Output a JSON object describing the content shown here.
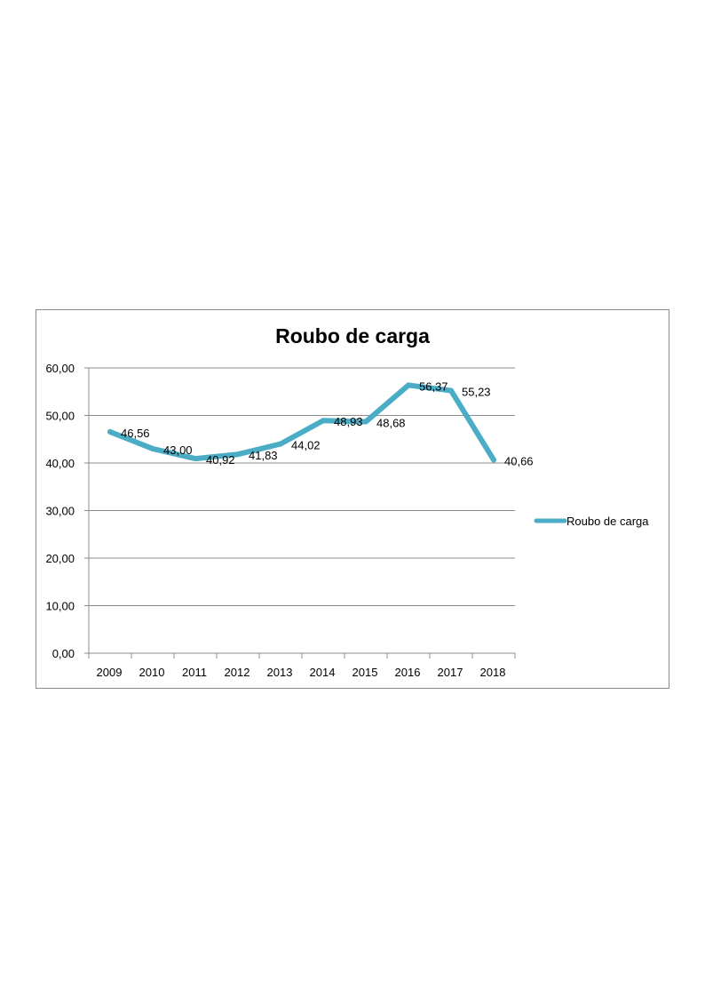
{
  "chart_data": {
    "type": "line",
    "title": "Roubo de carga",
    "xlabel": "",
    "ylabel": "",
    "categories": [
      "2009",
      "2010",
      "2011",
      "2012",
      "2013",
      "2014",
      "2015",
      "2016",
      "2017",
      "2018"
    ],
    "series": [
      {
        "name": "Roubo de carga",
        "values": [
          46.56,
          43.0,
          40.92,
          41.83,
          44.02,
          48.93,
          48.68,
          56.37,
          55.23,
          40.66
        ],
        "labels": [
          "46,56",
          "43,00",
          "40,92",
          "41,83",
          "44,02",
          "48,93",
          "48,68",
          "56,37",
          "55,23",
          "40,66"
        ],
        "color": "#4bacc6"
      }
    ],
    "ylim": [
      0,
      60
    ],
    "yticks": [
      0,
      10,
      20,
      30,
      40,
      50,
      60
    ],
    "ytick_labels": [
      "0,00",
      "10,00",
      "20,00",
      "30,00",
      "40,00",
      "50,00",
      "60,00"
    ],
    "grid": true,
    "legend_position": "right",
    "gridline_color": "#8c8c8c",
    "axis_color": "#8c8c8c"
  }
}
